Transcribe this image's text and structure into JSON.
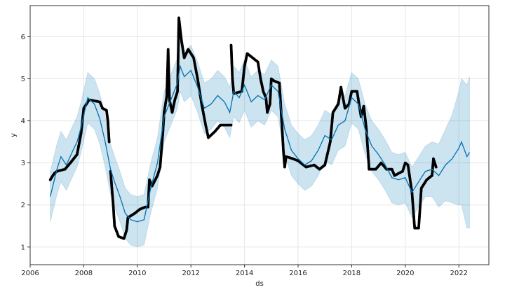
{
  "chart_data": {
    "type": "line",
    "title": "",
    "xlabel": "ds",
    "ylabel": "y",
    "xlim": [
      2006.0,
      2023.12
    ],
    "ylim": [
      0.58,
      6.74
    ],
    "xticks": [
      "2006",
      "2008",
      "2010",
      "2012",
      "2014",
      "2016",
      "2018",
      "2020",
      "2022"
    ],
    "yticks": [
      "1",
      "2",
      "3",
      "4",
      "5",
      "6"
    ],
    "grid": true,
    "colors": {
      "actual": "#000000",
      "forecast": "#0072B2",
      "interval": "#0072B2"
    },
    "actual_segments": [
      [
        [
          2006.75,
          2.6
        ],
        [
          2006.9,
          2.75
        ],
        [
          2007.0,
          2.8
        ],
        [
          2007.3,
          2.85
        ],
        [
          2007.5,
          3.0
        ],
        [
          2007.75,
          3.2
        ],
        [
          2007.9,
          3.7
        ],
        [
          2008.0,
          4.3
        ],
        [
          2008.2,
          4.5
        ],
        [
          2008.6,
          4.45
        ],
        [
          2008.7,
          4.3
        ],
        [
          2008.85,
          4.25
        ],
        [
          2008.9,
          4.0
        ],
        [
          2008.95,
          3.5
        ]
      ],
      [
        [
          2009.0,
          2.8
        ],
        [
          2009.1,
          2.0
        ],
        [
          2009.15,
          1.5
        ],
        [
          2009.3,
          1.25
        ],
        [
          2009.5,
          1.2
        ],
        [
          2009.6,
          1.4
        ],
        [
          2009.65,
          1.7
        ],
        [
          2009.9,
          1.8
        ],
        [
          2010.1,
          1.9
        ],
        [
          2010.3,
          1.95
        ],
        [
          2010.4,
          1.95
        ],
        [
          2010.45,
          2.6
        ],
        [
          2010.55,
          2.45
        ],
        [
          2010.75,
          2.7
        ],
        [
          2010.85,
          2.9
        ],
        [
          2010.95,
          3.7
        ],
        [
          2011.0,
          4.2
        ],
        [
          2011.1,
          4.6
        ],
        [
          2011.15,
          5.7
        ],
        [
          2011.2,
          4.5
        ],
        [
          2011.3,
          4.2
        ],
        [
          2011.4,
          4.5
        ],
        [
          2011.5,
          4.7
        ],
        [
          2011.55,
          6.45
        ],
        [
          2011.65,
          5.9
        ],
        [
          2011.75,
          5.5
        ],
        [
          2011.9,
          5.7
        ],
        [
          2012.1,
          5.5
        ],
        [
          2012.25,
          5.0
        ],
        [
          2012.4,
          4.4
        ],
        [
          2012.55,
          3.9
        ],
        [
          2012.65,
          3.6
        ],
        [
          2012.9,
          3.75
        ],
        [
          2013.1,
          3.9
        ],
        [
          2013.5,
          3.9
        ]
      ],
      [
        [
          2013.5,
          5.8
        ],
        [
          2013.55,
          5.0
        ],
        [
          2013.6,
          4.65
        ],
        [
          2013.9,
          4.7
        ],
        [
          2014.0,
          5.3
        ],
        [
          2014.1,
          5.6
        ],
        [
          2014.3,
          5.5
        ],
        [
          2014.5,
          5.4
        ],
        [
          2014.6,
          5.0
        ],
        [
          2014.7,
          4.7
        ],
        [
          2014.8,
          4.55
        ],
        [
          2014.85,
          4.2
        ],
        [
          2014.95,
          4.4
        ],
        [
          2015.0,
          5.0
        ],
        [
          2015.1,
          4.95
        ],
        [
          2015.3,
          4.9
        ],
        [
          2015.35,
          4.4
        ],
        [
          2015.45,
          3.3
        ],
        [
          2015.5,
          2.9
        ],
        [
          2015.55,
          3.15
        ],
        [
          2015.8,
          3.1
        ],
        [
          2016.0,
          3.05
        ],
        [
          2016.3,
          2.9
        ],
        [
          2016.6,
          2.95
        ],
        [
          2016.8,
          2.85
        ],
        [
          2017.0,
          2.95
        ],
        [
          2017.2,
          3.5
        ],
        [
          2017.3,
          4.2
        ],
        [
          2017.5,
          4.4
        ],
        [
          2017.6,
          4.8
        ],
        [
          2017.75,
          4.3
        ],
        [
          2017.9,
          4.4
        ],
        [
          2018.0,
          4.7
        ],
        [
          2018.2,
          4.7
        ],
        [
          2018.35,
          4.1
        ],
        [
          2018.45,
          4.35
        ],
        [
          2018.55,
          3.8
        ],
        [
          2018.65,
          2.85
        ],
        [
          2018.9,
          2.85
        ],
        [
          2019.1,
          3.0
        ],
        [
          2019.3,
          2.85
        ],
        [
          2019.5,
          2.85
        ],
        [
          2019.6,
          2.7
        ],
        [
          2019.9,
          2.8
        ],
        [
          2020.0,
          3.0
        ],
        [
          2020.1,
          2.95
        ],
        [
          2020.25,
          2.3
        ],
        [
          2020.35,
          1.45
        ],
        [
          2020.5,
          1.45
        ],
        [
          2020.6,
          2.4
        ],
        [
          2020.8,
          2.6
        ],
        [
          2021.0,
          2.7
        ],
        [
          2021.05,
          3.1
        ],
        [
          2021.15,
          2.9
        ]
      ]
    ],
    "forecast": {
      "x": [
        2006.75,
        2007.0,
        2007.15,
        2007.35,
        2007.6,
        2007.75,
        2007.9,
        2008.15,
        2008.4,
        2008.6,
        2008.8,
        2009.0,
        2009.15,
        2009.35,
        2009.55,
        2009.75,
        2010.0,
        2010.25,
        2010.5,
        2010.75,
        2011.0,
        2011.25,
        2011.5,
        2011.6,
        2011.75,
        2012.0,
        2012.25,
        2012.5,
        2012.75,
        2013.0,
        2013.25,
        2013.45,
        2013.6,
        2013.8,
        2014.0,
        2014.25,
        2014.5,
        2014.75,
        2015.0,
        2015.25,
        2015.5,
        2015.75,
        2016.0,
        2016.25,
        2016.5,
        2016.75,
        2017.0,
        2017.25,
        2017.5,
        2017.75,
        2018.0,
        2018.25,
        2018.5,
        2018.75,
        2019.0,
        2019.25,
        2019.5,
        2019.75,
        2020.0,
        2020.25,
        2020.5,
        2020.75,
        2021.0,
        2021.25,
        2021.5,
        2021.75,
        2022.0,
        2022.1,
        2022.3,
        2022.4
      ],
      "yhat": [
        2.2,
        2.85,
        3.15,
        2.95,
        3.3,
        3.5,
        3.85,
        4.55,
        4.4,
        4.05,
        3.5,
        2.85,
        2.55,
        2.2,
        1.8,
        1.65,
        1.6,
        1.65,
        2.4,
        3.0,
        4.1,
        4.5,
        4.9,
        5.3,
        5.05,
        5.2,
        4.8,
        4.3,
        4.4,
        4.6,
        4.45,
        4.2,
        4.7,
        4.55,
        4.85,
        4.45,
        4.6,
        4.5,
        4.85,
        4.7,
        3.8,
        3.3,
        3.1,
        2.95,
        3.05,
        3.3,
        3.65,
        3.55,
        3.9,
        4.0,
        4.55,
        4.4,
        3.8,
        3.4,
        3.2,
        2.95,
        2.65,
        2.6,
        2.65,
        2.3,
        2.55,
        2.8,
        2.85,
        2.7,
        2.95,
        3.1,
        3.35,
        3.5,
        3.15,
        3.25
      ],
      "interval_halfwidth": [
        0.6,
        0.6,
        0.6,
        0.6,
        0.6,
        0.6,
        0.6,
        0.6,
        0.6,
        0.6,
        0.6,
        0.6,
        0.6,
        0.6,
        0.6,
        0.6,
        0.6,
        0.6,
        0.6,
        0.6,
        0.6,
        0.6,
        0.6,
        0.6,
        0.6,
        0.6,
        0.6,
        0.6,
        0.6,
        0.6,
        0.6,
        0.6,
        0.6,
        0.6,
        0.6,
        0.6,
        0.6,
        0.6,
        0.6,
        0.6,
        0.6,
        0.6,
        0.6,
        0.6,
        0.6,
        0.6,
        0.6,
        0.6,
        0.6,
        0.6,
        0.6,
        0.6,
        0.6,
        0.6,
        0.6,
        0.6,
        0.6,
        0.6,
        0.6,
        0.6,
        0.6,
        0.6,
        0.65,
        0.75,
        0.85,
        1.05,
        1.35,
        1.5,
        1.7,
        1.8
      ]
    }
  }
}
